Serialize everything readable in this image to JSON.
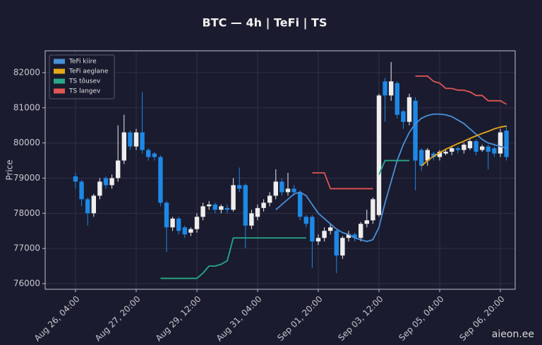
{
  "chart_data": {
    "type": "candlestick",
    "title": "BTC — 4h  |  TeFi  |  TS",
    "ylabel": "Price",
    "watermark": "aieon.ee",
    "categories": [
      "Aug 26, 04:00",
      null,
      null,
      null,
      null,
      null,
      null,
      null,
      null,
      null,
      "Aug 27, 20:00",
      null,
      null,
      null,
      null,
      null,
      null,
      null,
      null,
      null,
      "Aug 29, 12:00",
      null,
      null,
      null,
      null,
      null,
      null,
      null,
      null,
      null,
      "Aug 31, 04:00",
      null,
      null,
      null,
      null,
      null,
      null,
      null,
      null,
      null,
      "Sep 01, 20:00",
      null,
      null,
      null,
      null,
      null,
      null,
      null,
      null,
      null,
      "Sep 03, 12:00",
      null,
      null,
      null,
      null,
      null,
      null,
      null,
      null,
      null,
      "Sep 05, 04:00",
      null,
      null,
      null,
      null,
      null,
      null,
      null,
      null,
      null,
      "Sep 06, 20:00",
      null
    ],
    "open": [
      79050,
      78900,
      78400,
      78000,
      78500,
      79000,
      78800,
      79000,
      79500,
      80300,
      79900,
      80300,
      79800,
      79700,
      79600,
      78300,
      77600,
      77850,
      77600,
      77450,
      77550,
      77900,
      78200,
      78250,
      78100,
      78150,
      78100,
      78800,
      78800,
      77650,
      77900,
      78150,
      78300,
      78500,
      78900,
      78600,
      78700,
      78600,
      77900,
      77900,
      77200,
      77300,
      77500,
      77500,
      76800,
      77300,
      77400,
      77300,
      77700,
      77800,
      77950,
      81750,
      81350,
      81700,
      80900,
      80600,
      81200,
      79800,
      79500,
      79700,
      79600,
      79700,
      79750,
      79850,
      79800,
      79850,
      80050,
      79800,
      79900,
      79850,
      79700,
      80350
    ],
    "high": [
      79150,
      78950,
      78450,
      78550,
      79000,
      79050,
      79100,
      80500,
      80800,
      80350,
      80400,
      81450,
      79850,
      79750,
      79650,
      78350,
      77900,
      77900,
      77650,
      77600,
      78000,
      78300,
      78350,
      78300,
      78250,
      78250,
      79000,
      79300,
      78850,
      78100,
      78250,
      78400,
      78600,
      79250,
      79000,
      79150,
      78800,
      78650,
      77950,
      77950,
      77400,
      77600,
      77700,
      77550,
      77350,
      77500,
      77450,
      77750,
      78100,
      78450,
      81400,
      81850,
      82300,
      81750,
      80950,
      81400,
      81300,
      79850,
      79850,
      79750,
      79800,
      79800,
      79900,
      79900,
      80000,
      80100,
      80100,
      79950,
      79950,
      79900,
      80400,
      80500
    ],
    "low": [
      78700,
      78200,
      77650,
      77900,
      78400,
      78700,
      78700,
      78900,
      79400,
      79800,
      79800,
      79700,
      79500,
      79500,
      78200,
      76900,
      77500,
      77400,
      77300,
      77350,
      77450,
      77800,
      78100,
      78000,
      78000,
      78000,
      78050,
      78600,
      77000,
      77550,
      77800,
      78050,
      78200,
      78400,
      78500,
      78500,
      78500,
      77800,
      77600,
      76450,
      77100,
      77200,
      77400,
      76300,
      76700,
      77200,
      77200,
      77200,
      77600,
      77700,
      77900,
      80600,
      81200,
      80700,
      80400,
      80500,
      78650,
      79200,
      79350,
      79500,
      79500,
      79650,
      79650,
      79700,
      79700,
      79800,
      79650,
      79750,
      79250,
      79600,
      79600,
      79500
    ],
    "close": [
      78900,
      78400,
      78000,
      78500,
      78900,
      78800,
      79000,
      79500,
      80300,
      79900,
      80300,
      79800,
      79600,
      79600,
      78300,
      77600,
      77850,
      77500,
      77400,
      77550,
      77900,
      78200,
      78250,
      78100,
      78200,
      78100,
      78800,
      78700,
      77650,
      78000,
      78150,
      78300,
      78500,
      78900,
      78600,
      78700,
      78600,
      77900,
      77700,
      77200,
      77300,
      77500,
      77600,
      76800,
      77300,
      77400,
      77300,
      77700,
      77800,
      78400,
      81350,
      81350,
      81750,
      80800,
      80600,
      81300,
      79500,
      79350,
      79800,
      79600,
      79750,
      79750,
      79850,
      79800,
      79950,
      80050,
      79750,
      79900,
      79750,
      79700,
      80300,
      79600
    ],
    "up_color": "#eeeeee",
    "down_color": "#1e88e5",
    "series": [
      {
        "name": "TeFi kiire",
        "color": "#4a90d9",
        "values": [
          null,
          null,
          null,
          null,
          null,
          null,
          null,
          null,
          null,
          null,
          null,
          null,
          null,
          null,
          null,
          null,
          null,
          null,
          null,
          null,
          null,
          null,
          null,
          null,
          null,
          null,
          null,
          null,
          null,
          null,
          null,
          null,
          null,
          78100,
          78250,
          78400,
          78550,
          78600,
          78500,
          78250,
          78000,
          77850,
          77700,
          77550,
          77450,
          77400,
          77300,
          77250,
          77200,
          77250,
          77600,
          78300,
          78900,
          79500,
          79950,
          80300,
          80550,
          80700,
          80780,
          80820,
          80820,
          80800,
          80750,
          80650,
          80550,
          80400,
          80250,
          80100,
          80000,
          79950,
          79900,
          79850
        ]
      },
      {
        "name": "TeFi aeglane",
        "color": "#e6a817",
        "values": [
          null,
          null,
          null,
          null,
          null,
          null,
          null,
          null,
          null,
          null,
          null,
          null,
          null,
          null,
          null,
          null,
          null,
          null,
          null,
          null,
          null,
          null,
          null,
          null,
          null,
          null,
          null,
          null,
          null,
          null,
          null,
          null,
          null,
          null,
          null,
          null,
          null,
          null,
          null,
          null,
          null,
          null,
          null,
          null,
          null,
          null,
          null,
          null,
          null,
          null,
          null,
          null,
          null,
          null,
          null,
          null,
          null,
          79350,
          79500,
          79620,
          79720,
          79820,
          79900,
          79980,
          80050,
          80130,
          80200,
          80270,
          80330,
          80400,
          80450,
          80480
        ]
      },
      {
        "name": "TS tõusev",
        "color": "#2aa889",
        "values": [
          null,
          null,
          null,
          null,
          null,
          null,
          null,
          null,
          null,
          null,
          null,
          null,
          null,
          null,
          76150,
          76150,
          76150,
          76150,
          76150,
          76150,
          76150,
          76300,
          76500,
          76500,
          76550,
          76650,
          77300,
          77300,
          77300,
          77300,
          77300,
          77300,
          77300,
          77300,
          77300,
          77300,
          77300,
          77300,
          77300,
          null,
          null,
          null,
          null,
          null,
          null,
          null,
          null,
          null,
          null,
          null,
          79100,
          79500,
          79500,
          79500,
          79500,
          79500,
          null,
          null,
          null,
          null,
          null,
          null,
          null,
          null,
          null,
          null,
          null,
          null,
          null,
          null,
          null,
          null
        ]
      },
      {
        "name": "TS langev",
        "color": "#e05555",
        "values": [
          null,
          null,
          null,
          null,
          null,
          null,
          null,
          null,
          null,
          null,
          null,
          null,
          null,
          null,
          null,
          null,
          null,
          null,
          null,
          null,
          null,
          null,
          null,
          null,
          null,
          null,
          null,
          null,
          null,
          null,
          null,
          null,
          null,
          null,
          null,
          null,
          null,
          null,
          null,
          79150,
          79150,
          79150,
          78700,
          78700,
          78700,
          78700,
          78700,
          78700,
          78700,
          78700,
          null,
          null,
          null,
          null,
          null,
          null,
          81900,
          81900,
          81900,
          81750,
          81700,
          81550,
          81550,
          81500,
          81500,
          81450,
          81350,
          81350,
          81200,
          81200,
          81200,
          81100
        ]
      }
    ],
    "ylim": [
      75840,
      82620
    ],
    "yticks": [
      76000,
      77000,
      78000,
      79000,
      80000,
      81000,
      82000
    ],
    "grid": true,
    "legend": "upper left"
  }
}
